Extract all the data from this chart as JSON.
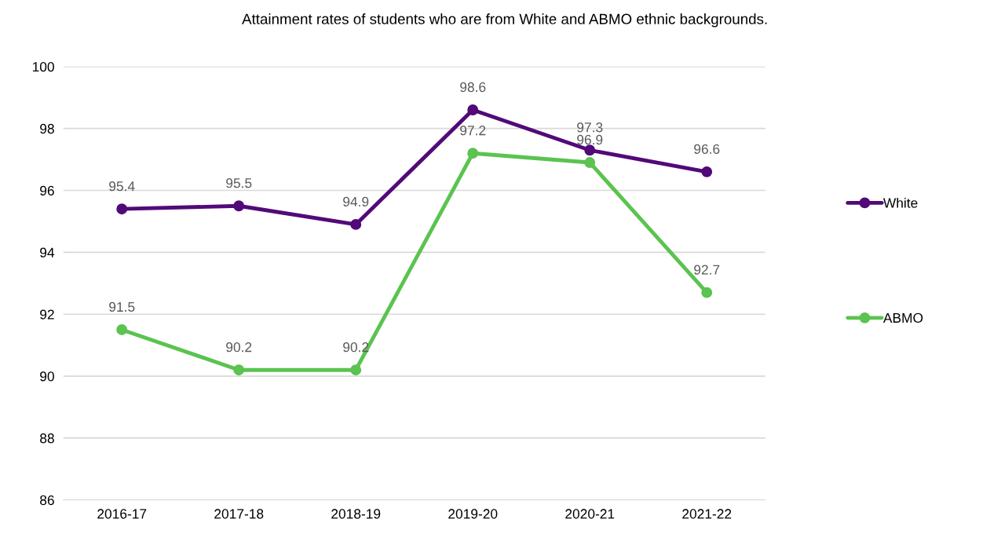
{
  "chart_data": {
    "type": "line",
    "title": "Attainment rates of students who are from White and ABMO ethnic backgrounds.",
    "categories": [
      "2016-17",
      "2017-18",
      "2018-19",
      "2019-20",
      "2020-21",
      "2021-22"
    ],
    "series": [
      {
        "name": "White",
        "color": "#520a78",
        "values": [
          95.4,
          95.5,
          94.9,
          98.6,
          97.3,
          96.6
        ]
      },
      {
        "name": "ABMO",
        "color": "#5bc350",
        "values": [
          91.5,
          90.2,
          90.2,
          97.2,
          96.9,
          92.7
        ]
      }
    ],
    "ylim": [
      86,
      100
    ],
    "yticks": [
      86,
      88,
      90,
      92,
      94,
      96,
      98,
      100
    ],
    "grid": "y",
    "legend": "right",
    "marker": "circle",
    "line_style": "solid",
    "data_labels": true
  }
}
